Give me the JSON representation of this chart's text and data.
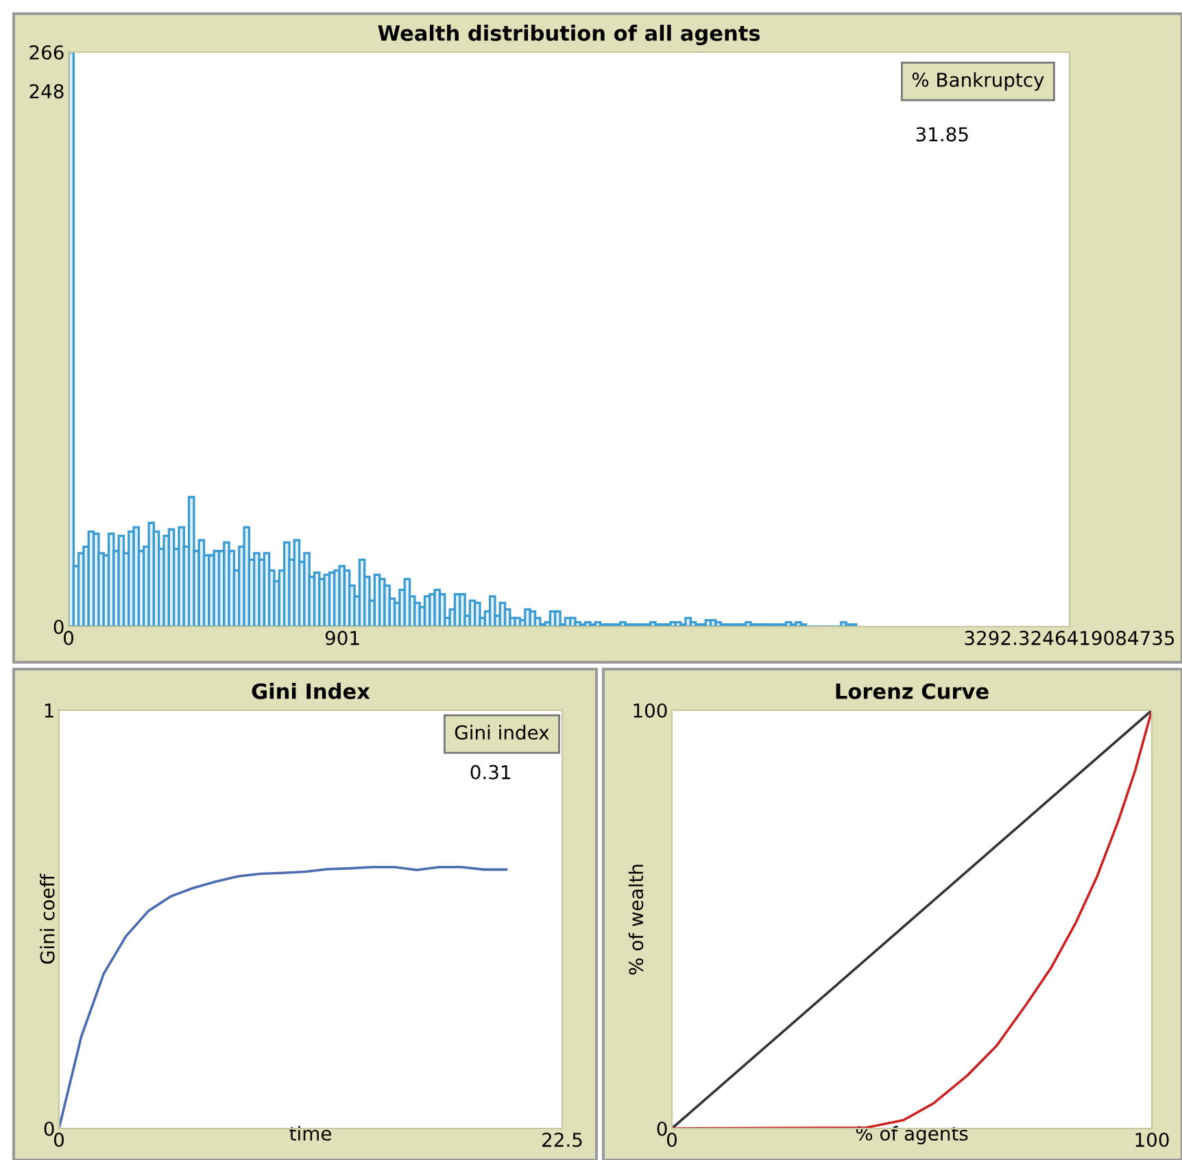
{
  "chart_data": [
    {
      "type": "histogram",
      "title": "Wealth distribution of all agents",
      "color": "#3b9bd3",
      "bins": [
        0,
        16.5,
        33,
        49.5,
        66,
        82.5,
        99,
        115.5,
        132,
        148.5,
        165,
        181.5,
        198,
        214.5,
        231,
        247.5,
        264,
        280.5,
        297,
        313.5,
        330,
        346.5,
        363,
        379.5,
        396,
        412.5,
        429,
        445.5,
        462,
        478.5,
        495,
        511.5,
        528,
        544.5,
        561,
        577.5,
        594,
        610.5,
        627,
        643.5,
        660,
        676.5,
        693,
        709.5,
        726,
        742.5,
        759,
        775.5,
        792,
        808.5,
        825,
        841.5,
        858,
        874.5,
        891,
        907.5,
        924,
        940.5,
        957,
        973.5,
        990,
        1006.5,
        1023,
        1039.5,
        1056,
        1072.5,
        1089,
        1105.5,
        1122,
        1138.5,
        1155,
        1171.5,
        1188,
        1204.5,
        1221,
        1237.5,
        1254,
        1270.5,
        1287,
        1303.5,
        1320,
        1336.5,
        1353,
        1369.5,
        1386,
        1402.5,
        1419,
        1435.5,
        1452,
        1468.5,
        1485,
        1501.5,
        1518,
        1534.5,
        1551,
        1567.5,
        1584,
        1600.5,
        1617,
        1633.5,
        1650,
        1666.5,
        1683,
        1699.5,
        1716,
        1732.5,
        1749,
        1765.5,
        1782,
        1798.5,
        1815,
        1831.5,
        1848,
        1864.5,
        1881,
        1897.5,
        1914,
        1930.5,
        1947,
        1963.5,
        1980,
        1996.5,
        2013,
        2029.5,
        2046,
        2062.5,
        2079,
        2095.5,
        2112,
        2128.5,
        2145,
        2161.5,
        2178,
        2194.5,
        2211,
        2227.5,
        2244,
        2260.5,
        2277,
        2293.5,
        2310,
        2326.5,
        2343,
        2359.5,
        2376,
        2392.5,
        2409,
        2425.5,
        2442,
        2458.5,
        2475,
        2491.5,
        2508,
        2524.5,
        2541,
        2557.5,
        2574,
        2590.5
      ],
      "values": [
        266,
        28,
        34,
        37,
        44,
        43,
        34,
        33,
        43,
        35,
        42,
        34,
        44,
        46,
        35,
        37,
        48,
        44,
        36,
        42,
        45,
        36,
        46,
        37,
        60,
        35,
        40,
        33,
        33,
        35,
        35,
        39,
        35,
        26,
        37,
        46,
        31,
        34,
        31,
        34,
        26,
        21,
        26,
        39,
        31,
        40,
        30,
        34,
        23,
        25,
        22,
        24,
        25,
        26,
        28,
        26,
        19,
        14,
        31,
        23,
        12,
        24,
        22,
        19,
        13,
        11,
        17,
        22,
        14,
        11,
        9,
        14,
        15,
        17,
        15,
        4,
        8,
        15,
        15,
        5,
        12,
        11,
        4,
        7,
        14,
        5,
        11,
        8,
        4,
        4,
        3,
        8,
        7,
        4,
        1,
        2,
        7,
        7,
        1,
        4,
        4,
        2,
        1,
        2,
        1,
        2,
        1,
        1,
        1,
        1,
        2,
        1,
        1,
        1,
        1,
        1,
        2,
        1,
        1,
        1,
        2,
        2,
        1,
        4,
        2,
        1,
        1,
        3,
        3,
        2,
        1,
        1,
        1,
        1,
        1,
        2,
        1,
        1,
        1,
        1,
        1,
        1,
        1,
        2,
        1,
        2,
        1,
        0,
        0,
        0,
        0,
        0,
        0,
        0,
        2,
        1,
        1
      ],
      "xlim": [
        0,
        3292.3246419084735
      ],
      "xticks": [
        0,
        901,
        3292.3246419084735
      ],
      "ylim": [
        0,
        266
      ],
      "yticks": [
        0,
        248,
        266
      ],
      "annotations": [
        "% Bankruptcy",
        "31.85"
      ]
    },
    {
      "type": "line",
      "title": "Gini Index",
      "xlabel": "time",
      "ylabel": "Gini coeff",
      "x": [
        0,
        1,
        2,
        3,
        4,
        5,
        6,
        7,
        8,
        9,
        10,
        11,
        12,
        13,
        14,
        15,
        16,
        17,
        18,
        19,
        20
      ],
      "series": [
        {
          "color": "#4a6bb0",
          "values": [
            0,
            0.22,
            0.37,
            0.46,
            0.52,
            0.555,
            0.575,
            0.59,
            0.603,
            0.609,
            0.611,
            0.614,
            0.62,
            0.622,
            0.625,
            0.625,
            0.618,
            0.625,
            0.625,
            0.619,
            0.619
          ]
        }
      ],
      "xlim": [
        0,
        22.5
      ],
      "xticks": [
        0,
        22.5
      ],
      "ylim": [
        0,
        1
      ],
      "yticks": [
        0,
        1
      ],
      "annotations": [
        "Gini index",
        "0.31"
      ]
    },
    {
      "type": "line",
      "title": "Lorenz Curve",
      "xlabel": "% of agents",
      "ylabel": "% of wealth",
      "series": [
        {
          "color": "#333333",
          "x": [
            0,
            100
          ],
          "values": [
            0,
            100
          ]
        },
        {
          "color": "#cc2222",
          "x": [
            0,
            40.5,
            48.3,
            54.5,
            61.5,
            67.6,
            73.8,
            79,
            84.2,
            88.6,
            93,
            96.5,
            100
          ],
          "values": [
            0,
            0.2,
            2,
            6,
            12.6,
            19.7,
            29.6,
            38.4,
            49.3,
            60.3,
            73.5,
            85.5,
            100
          ]
        }
      ],
      "xlim": [
        0,
        100
      ],
      "xticks": [
        0,
        100
      ],
      "ylim": [
        0,
        100
      ],
      "yticks": [
        0,
        100
      ]
    }
  ]
}
